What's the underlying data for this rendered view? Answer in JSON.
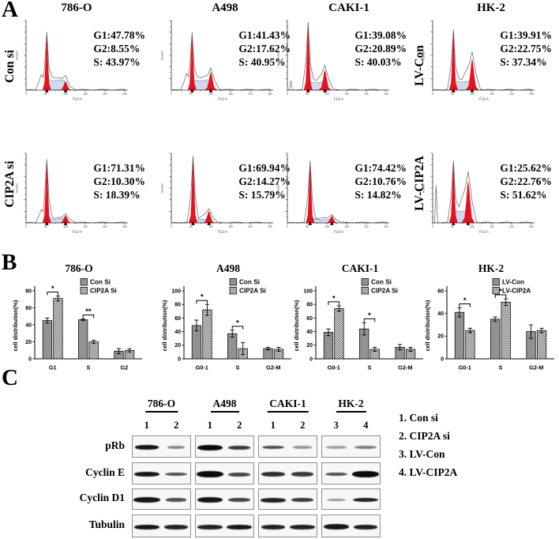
{
  "figure": {
    "panel_a_label": "A",
    "panel_b_label": "B",
    "panel_c_label": "C"
  },
  "flow": {
    "column_titles": [
      "786-O",
      "A498",
      "CAKI-1",
      "HK-2"
    ],
    "x_axis_label": "FL2-A",
    "y_axis_label": "Number",
    "x_tick_labels": [
      "0",
      "50",
      "100",
      "150",
      "200",
      "250"
    ],
    "rows": [
      {
        "left_label": "Con si",
        "right_label": "LV-Con",
        "plots": [
          {
            "cell_line": "786-O",
            "stats": [
              "G1:47.78%",
              "G2:8.55%",
              "S: 43.97%"
            ],
            "shape": {
              "g1x": 0.21,
              "g1h": 0.82,
              "g2x": 0.4,
              "g2h": 0.13,
              "sh": 0.145,
              "shoulder": 0.28,
              "debris": 0
            }
          },
          {
            "cell_line": "A498",
            "stats": [
              "G1:41.43%",
              "G2:17.62%",
              "S: 40.95%"
            ],
            "shape": {
              "g1x": 0.21,
              "g1h": 0.82,
              "g2x": 0.4,
              "g2h": 0.27,
              "sh": 0.145,
              "shoulder": 0.3,
              "debris": 0
            }
          },
          {
            "cell_line": "CAKI-1",
            "stats": [
              "G1:39.08%",
              "G2:20.89%",
              "S: 40.03%"
            ],
            "shape": {
              "g1x": 0.21,
              "g1h": 0.96,
              "g2x": 0.38,
              "g2h": 0.3,
              "sh": 0.115,
              "shoulder": 0,
              "debris": 0.14
            }
          },
          {
            "cell_line": "HK-2",
            "stats": [
              "G1:39.91%",
              "G2:22.75%",
              "S: 37.34%"
            ],
            "shape": {
              "g1x": 0.21,
              "g1h": 0.86,
              "g2x": 0.4,
              "g2h": 0.46,
              "sh": 0.125,
              "shoulder": 0,
              "debris": 0
            }
          }
        ]
      },
      {
        "left_label": "CIP2A si",
        "right_label": "LV-CIP2A",
        "plots": [
          {
            "cell_line": "786-O",
            "stats": [
              "G1:71.31%",
              "G2:10.30%",
              "S: 18.39%"
            ],
            "shape": {
              "g1x": 0.21,
              "g1h": 0.9,
              "g2x": 0.4,
              "g2h": 0.11,
              "sh": 0.06,
              "shoulder": 0.22,
              "debris": 0
            }
          },
          {
            "cell_line": "A498",
            "stats": [
              "G1:69.94%",
              "G2:14.27%",
              "S: 15.79%"
            ],
            "shape": {
              "g1x": 0.22,
              "g1h": 0.95,
              "g2x": 0.38,
              "g2h": 0.17,
              "sh": 0.05,
              "shoulder": 0,
              "debris": 0
            }
          },
          {
            "cell_line": "CAKI-1",
            "stats": [
              "G1:74.42%",
              "G2:10.76%",
              "S: 14.82%"
            ],
            "shape": {
              "g1x": 0.23,
              "g1h": 0.88,
              "g2x": 0.45,
              "g2h": 0.1,
              "sh": 0.05,
              "shoulder": 0,
              "debris": 0
            }
          },
          {
            "cell_line": "HK-2",
            "stats": [
              "G1:25.62%",
              "G2:22.76%",
              "S: 51.62%"
            ],
            "shape": {
              "g1x": 0.21,
              "g1h": 0.88,
              "g2x": 0.36,
              "g2h": 0.62,
              "sh": 0.175,
              "shoulder": 0,
              "debris": 0.55
            }
          }
        ]
      }
    ]
  },
  "chart_data": [
    {
      "type": "bar",
      "title": "786-O",
      "xlabel": "",
      "ylabel": "cell distribution(%)",
      "ylim": [
        0,
        80
      ],
      "yticks": [
        0,
        20,
        40,
        60,
        80
      ],
      "categories": [
        "G1",
        "S",
        "G2"
      ],
      "series": [
        {
          "name": "Con Si",
          "values": [
            45,
            46,
            9
          ],
          "errors": [
            3,
            1,
            3
          ]
        },
        {
          "name": "CIP2A Si",
          "values": [
            71,
            20,
            10
          ],
          "errors": [
            3,
            2,
            2
          ]
        }
      ],
      "significance": [
        {
          "category": 0,
          "label": "*"
        },
        {
          "category": 1,
          "label": "**"
        }
      ],
      "legend_position": "top-right",
      "grid": false
    },
    {
      "type": "bar",
      "title": "A498",
      "xlabel": "",
      "ylabel": "cell distribution(%)",
      "ylim": [
        0,
        100
      ],
      "yticks": [
        0,
        20,
        40,
        60,
        80,
        100
      ],
      "categories": [
        "G0-1",
        "S",
        "G2-M"
      ],
      "series": [
        {
          "name": "Con Si",
          "values": [
            49,
            37,
            15
          ],
          "errors": [
            8,
            5,
            2
          ]
        },
        {
          "name": "CIP2A Si",
          "values": [
            72,
            15,
            14
          ],
          "errors": [
            8,
            9,
            3
          ]
        }
      ],
      "significance": [
        {
          "category": 0,
          "label": "*"
        },
        {
          "category": 1,
          "label": "*"
        }
      ],
      "legend_position": "top-right",
      "grid": false
    },
    {
      "type": "bar",
      "title": "CAKI-1",
      "xlabel": "",
      "ylabel": "cell distribution(%)",
      "ylim": [
        0,
        100
      ],
      "yticks": [
        0,
        20,
        40,
        60,
        80,
        100
      ],
      "categories": [
        "G0-1",
        "S",
        "G2-M"
      ],
      "series": [
        {
          "name": "Con Si",
          "values": [
            39,
            44,
            17
          ],
          "errors": [
            5,
            9,
            4
          ]
        },
        {
          "name": "CIP2A Si",
          "values": [
            74,
            14,
            14
          ],
          "errors": [
            4,
            3,
            3
          ]
        }
      ],
      "significance": [
        {
          "category": 0,
          "label": "*"
        },
        {
          "category": 1,
          "label": "*"
        }
      ],
      "legend_position": "top-right",
      "grid": false
    },
    {
      "type": "bar",
      "title": "HK-2",
      "xlabel": "",
      "ylabel": "cell distribution(%)",
      "ylim": [
        0,
        60
      ],
      "yticks": [
        0,
        20,
        40,
        60
      ],
      "categories": [
        "G0-1",
        "S",
        "G2-M"
      ],
      "series": [
        {
          "name": "LV-Con",
          "values": [
            41,
            35,
            24
          ],
          "errors": [
            4,
            2,
            6
          ]
        },
        {
          "name": "LV-CIP2A",
          "values": [
            25,
            50,
            25
          ],
          "errors": [
            2,
            3,
            2
          ]
        }
      ],
      "significance": [
        {
          "category": 0,
          "label": "*"
        },
        {
          "category": 1,
          "label": "*"
        }
      ],
      "legend_position": "top-right",
      "grid": false
    }
  ],
  "colors": {
    "bar_solid": "#929292",
    "bar_edge": "#111111",
    "checker_dark": "#555555",
    "flow_peak_red": "#e8111c",
    "flow_outline": "#555555",
    "s_hatch_line": "#93a8d6",
    "s_hatch_bg": "#edf1fa"
  },
  "western": {
    "row_labels": [
      "pRb",
      "Cyclin E",
      "Cyclin D1",
      "Tubulin"
    ],
    "groups": [
      {
        "name": "786-O",
        "lanes": [
          "1",
          "2"
        ]
      },
      {
        "name": "A498",
        "lanes": [
          "1",
          "2"
        ]
      },
      {
        "name": "CAKI-1",
        "lanes": [
          "1",
          "2"
        ]
      },
      {
        "name": "HK-2",
        "lanes": [
          "3",
          "4"
        ]
      }
    ],
    "legend": [
      "1. Con si",
      "2. CIP2A si",
      "3. LV-Con",
      "4. LV-CIP2A"
    ],
    "bands": [
      [
        [
          [
            30,
            6,
            0.95
          ],
          [
            22,
            3.5,
            0.45
          ]
        ],
        [
          [
            32,
            7,
            1
          ],
          [
            28,
            5,
            0.8
          ]
        ],
        [
          [
            28,
            4.5,
            0.7
          ],
          [
            24,
            3.5,
            0.4
          ]
        ],
        [
          [
            26,
            3.5,
            0.35
          ],
          [
            28,
            4.5,
            0.5
          ]
        ]
      ],
      [
        [
          [
            32,
            6,
            0.95
          ],
          [
            28,
            4.5,
            0.7
          ]
        ],
        [
          [
            34,
            8,
            1
          ],
          [
            28,
            5,
            0.75
          ]
        ],
        [
          [
            30,
            6,
            0.85
          ],
          [
            28,
            5.5,
            0.8
          ]
        ],
        [
          [
            28,
            4.5,
            0.7
          ],
          [
            34,
            8,
            1
          ]
        ]
      ],
      [
        [
          [
            34,
            7,
            0.95
          ],
          [
            26,
            4.5,
            0.7
          ]
        ],
        [
          [
            32,
            7,
            0.95
          ],
          [
            28,
            5,
            0.75
          ]
        ],
        [
          [
            32,
            6,
            0.9
          ],
          [
            28,
            5,
            0.8
          ]
        ],
        [
          [
            24,
            3.5,
            0.4
          ],
          [
            32,
            5.5,
            0.9
          ]
        ]
      ],
      [
        [
          [
            32,
            6,
            0.95
          ],
          [
            30,
            6,
            0.9
          ]
        ],
        [
          [
            32,
            6,
            0.9
          ],
          [
            32,
            6,
            0.95
          ]
        ],
        [
          [
            30,
            6,
            0.9
          ],
          [
            32,
            6,
            0.9
          ]
        ],
        [
          [
            32,
            7,
            0.95
          ],
          [
            30,
            6,
            0.9
          ]
        ]
      ]
    ]
  }
}
